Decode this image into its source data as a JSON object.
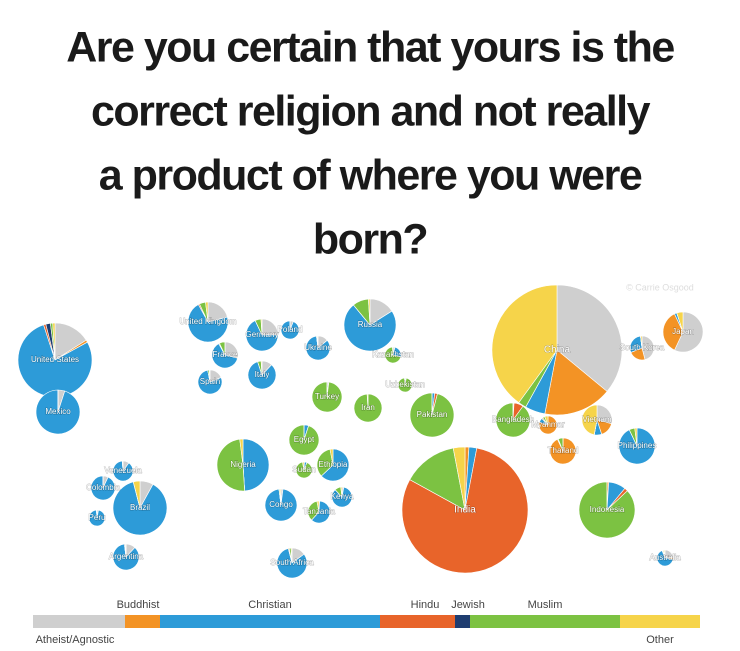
{
  "chart_data": {
    "type": "pie-map",
    "title": [
      "Are you certain that yours is the",
      "correct religion and not really",
      "a product of where you were",
      "born?"
    ],
    "credit": "© Carrie Osgood",
    "categories": [
      "Atheist/Agnostic",
      "Buddhist",
      "Christian",
      "Hindu",
      "Jewish",
      "Muslim",
      "Other"
    ],
    "colors": [
      "#cfcfcf",
      "#f39325",
      "#2d9bd8",
      "#e8642a",
      "#1f3d70",
      "#7cc242",
      "#f6d44a"
    ],
    "pies": [
      {
        "label": "Russia",
        "values": [
          16,
          0,
          73,
          0,
          0,
          10,
          1
        ]
      },
      {
        "label": "United Kingdom",
        "values": [
          21,
          0,
          71,
          1,
          0,
          5,
          2
        ]
      },
      {
        "label": "Germany",
        "values": [
          25,
          0,
          68,
          0,
          0,
          6,
          1
        ]
      },
      {
        "label": "Poland",
        "values": [
          6,
          0,
          94,
          0,
          0,
          0,
          0
        ]
      },
      {
        "label": "Ukraine",
        "values": [
          14,
          0,
          84,
          0,
          0,
          1,
          1
        ]
      },
      {
        "label": "France",
        "values": [
          28,
          1,
          63,
          0,
          1,
          7,
          0
        ]
      },
      {
        "label": "Spain",
        "values": [
          19,
          0,
          78,
          0,
          0,
          2,
          1
        ]
      },
      {
        "label": "Italy",
        "values": [
          12,
          0,
          83,
          0,
          0,
          4,
          1
        ]
      },
      {
        "label": "Kazakhstan",
        "values": [
          4,
          0,
          25,
          0,
          0,
          70,
          1
        ]
      },
      {
        "label": "Turkey",
        "values": [
          2,
          0,
          0,
          0,
          0,
          98,
          0
        ]
      },
      {
        "label": "Iran",
        "values": [
          0,
          0,
          0,
          0,
          0,
          99,
          1
        ]
      },
      {
        "label": "Pakistan",
        "values": [
          0,
          0,
          2,
          2,
          0,
          96,
          0
        ]
      },
      {
        "label": "Uzbekistan",
        "values": [
          1,
          0,
          2,
          0,
          0,
          96,
          1
        ]
      },
      {
        "label": "China",
        "values": [
          36,
          17,
          5,
          0,
          0,
          2,
          40
        ]
      },
      {
        "label": "Japan",
        "values": [
          57,
          36,
          2,
          0,
          0,
          0,
          5
        ]
      },
      {
        "label": "South Korea",
        "values": [
          46,
          23,
          29,
          0,
          0,
          0,
          2
        ]
      },
      {
        "label": "Vietnam",
        "values": [
          29,
          16,
          8,
          0,
          0,
          0,
          47
        ]
      },
      {
        "label": "Bangladesh",
        "values": [
          0,
          1,
          0,
          9,
          0,
          90,
          0
        ]
      },
      {
        "label": "Myanmar",
        "values": [
          0,
          80,
          8,
          2,
          0,
          4,
          6
        ]
      },
      {
        "label": "Thailand",
        "values": [
          0,
          93,
          1,
          0,
          0,
          6,
          0
        ]
      },
      {
        "label": "Philippines",
        "values": [
          0,
          0,
          93,
          0,
          0,
          5,
          2
        ]
      },
      {
        "label": "India",
        "values": [
          0,
          1,
          2,
          80,
          0,
          14,
          3
        ]
      },
      {
        "label": "Indonesia",
        "values": [
          0,
          1,
          10,
          2,
          0,
          87,
          0
        ]
      },
      {
        "label": "Australia",
        "values": [
          24,
          3,
          67,
          1,
          1,
          2,
          2
        ]
      },
      {
        "label": "Egypt",
        "values": [
          0,
          0,
          5,
          0,
          0,
          95,
          0
        ]
      },
      {
        "label": "Nigeria",
        "values": [
          0,
          0,
          49,
          0,
          0,
          49,
          2
        ]
      },
      {
        "label": "Ethiopia",
        "values": [
          0,
          0,
          63,
          0,
          0,
          34,
          3
        ]
      },
      {
        "label": "Kenya",
        "values": [
          3,
          0,
          85,
          0,
          0,
          10,
          2
        ]
      },
      {
        "label": "Congo",
        "values": [
          2,
          0,
          96,
          0,
          0,
          1,
          1
        ]
      },
      {
        "label": "Tanzania",
        "values": [
          1,
          0,
          61,
          0,
          0,
          35,
          3
        ]
      },
      {
        "label": "South Africa",
        "values": [
          15,
          0,
          81,
          1,
          0,
          2,
          1
        ]
      },
      {
        "label": "Sudan",
        "values": [
          1,
          0,
          5,
          0,
          0,
          91,
          3
        ]
      },
      {
        "label": "United States",
        "values": [
          16,
          1,
          78,
          1,
          2,
          1,
          1
        ]
      },
      {
        "label": "Mexico",
        "values": [
          5,
          0,
          95,
          0,
          0,
          0,
          0
        ]
      },
      {
        "label": "Brazil",
        "values": [
          8,
          0,
          88,
          0,
          0,
          0,
          4
        ]
      },
      {
        "label": "Colombia",
        "values": [
          7,
          0,
          93,
          0,
          0,
          0,
          0
        ]
      },
      {
        "label": "Venezuela",
        "values": [
          10,
          0,
          89,
          0,
          0,
          0,
          1
        ]
      },
      {
        "label": "Peru",
        "values": [
          3,
          0,
          96,
          0,
          0,
          0,
          1
        ]
      },
      {
        "label": "Argentina",
        "values": [
          12,
          0,
          86,
          0,
          1,
          1,
          0
        ]
      }
    ]
  }
}
